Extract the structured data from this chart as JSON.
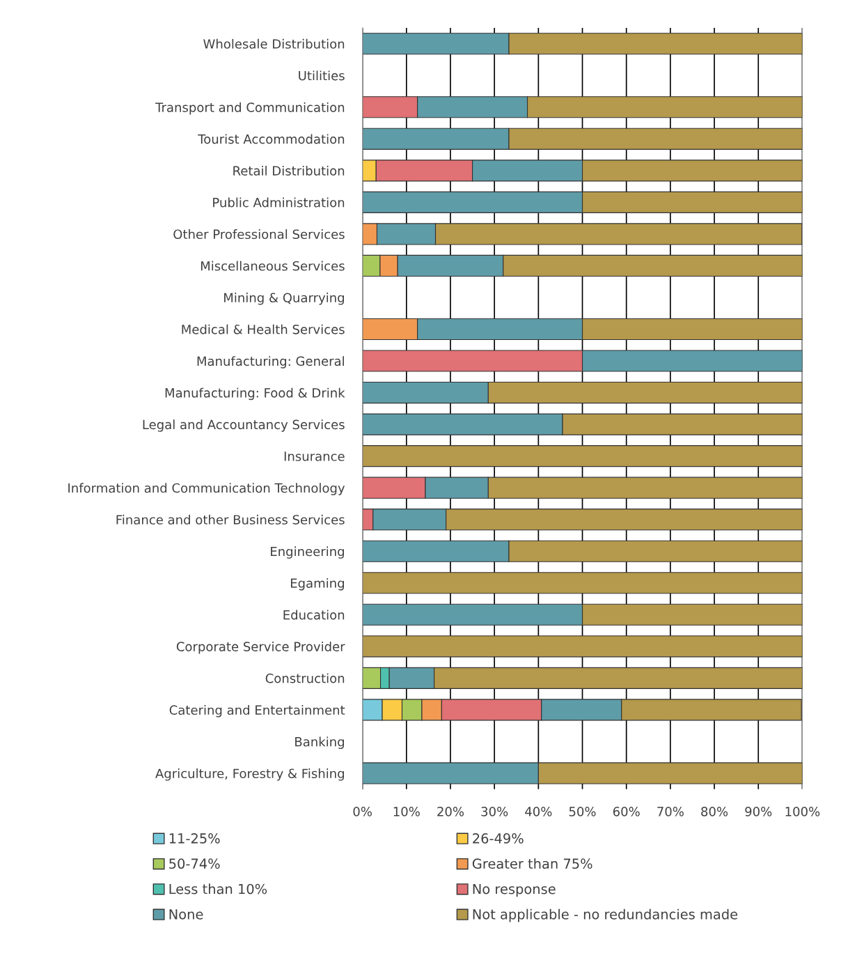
{
  "chart_data": {
    "type": "bar",
    "orientation": "horizontal",
    "stacked": true,
    "categories": [
      "Wholesale Distribution",
      "Utilities",
      "Transport and Communication",
      "Tourist Accommodation",
      "Retail Distribution",
      "Public Administration",
      "Other Professional Services",
      "Miscellaneous Services",
      "Mining & Quarrying",
      "Medical & Health Services",
      "Manufacturing: General",
      "Manufacturing: Food & Drink",
      "Legal and Accountancy Services",
      "Insurance",
      "Information and Communication Technology",
      "Finance and other Business Services",
      "Engineering",
      "Egaming",
      "Education",
      "Corporate Service Provider",
      "Construction",
      "Catering and Entertainment",
      "Banking",
      "Agriculture, Forestry & Fishing"
    ],
    "series": [
      {
        "name": "11-25%",
        "color": "#78c9dc",
        "values": [
          0,
          null,
          0,
          0,
          0,
          0,
          0,
          0,
          null,
          0,
          0,
          0,
          0,
          0,
          0,
          0,
          0,
          0,
          0,
          0,
          0,
          4.5,
          null,
          0
        ]
      },
      {
        "name": "26-49%",
        "color": "#fbcb46",
        "values": [
          0,
          null,
          0,
          0,
          3.1,
          0,
          0,
          0,
          null,
          0,
          0,
          0,
          0,
          0,
          0,
          0,
          0,
          0,
          0,
          0,
          0,
          4.5,
          null,
          0
        ]
      },
      {
        "name": "50-74%",
        "color": "#a8c95c",
        "values": [
          0,
          null,
          0,
          0,
          0,
          0,
          0,
          4,
          null,
          0,
          0,
          0,
          0,
          0,
          0,
          0,
          0,
          0,
          0,
          0,
          4.1,
          4.5,
          null,
          0
        ]
      },
      {
        "name": "Greater than 75%",
        "color": "#f29a52",
        "values": [
          0,
          null,
          0,
          0,
          0,
          0,
          3.3,
          4,
          null,
          12.5,
          0,
          0,
          0,
          0,
          0,
          0,
          0,
          0,
          0,
          0,
          0,
          4.5,
          null,
          0
        ]
      },
      {
        "name": "Less than 10%",
        "color": "#4fc0ae",
        "values": [
          0,
          null,
          0,
          0,
          0,
          0,
          0,
          0,
          null,
          0,
          0,
          0,
          0,
          0,
          0,
          0,
          0,
          0,
          0,
          0,
          2,
          0,
          null,
          0
        ]
      },
      {
        "name": "No response",
        "color": "#e07174",
        "values": [
          0,
          null,
          12.5,
          0,
          21.9,
          0,
          0,
          0,
          null,
          0,
          50,
          0,
          0,
          0,
          14.3,
          2.4,
          0,
          0,
          0,
          0,
          0,
          22.7,
          null,
          0
        ]
      },
      {
        "name": "None",
        "color": "#5e9ca8",
        "values": [
          33.3,
          null,
          25,
          33.3,
          25,
          50,
          13.3,
          24,
          null,
          37.5,
          50,
          28.6,
          45.5,
          0,
          14.3,
          16.6,
          33.3,
          0,
          50,
          0,
          10.2,
          18.2,
          null,
          40
        ]
      },
      {
        "name": "Not applicable - no redundancies made",
        "color": "#b5994c",
        "values": [
          66.7,
          null,
          62.5,
          66.7,
          50,
          50,
          83.3,
          68,
          null,
          50,
          0,
          71.4,
          54.5,
          100,
          71.4,
          81,
          66.7,
          100,
          50,
          100,
          83.7,
          40.9,
          null,
          60
        ]
      }
    ],
    "xlim": [
      0,
      100
    ],
    "xticks": [
      {
        "value": 0,
        "label": "0%"
      },
      {
        "value": 10,
        "label": "10%"
      },
      {
        "value": 20,
        "label": "20%"
      },
      {
        "value": 30,
        "label": "30%"
      },
      {
        "value": 40,
        "label": "40%"
      },
      {
        "value": 50,
        "label": "50%"
      },
      {
        "value": 60,
        "label": "60%"
      },
      {
        "value": 70,
        "label": "70%"
      },
      {
        "value": 80,
        "label": "80%"
      },
      {
        "value": 90,
        "label": "90%"
      },
      {
        "value": 100,
        "label": "100%"
      }
    ],
    "grid": "x",
    "legend": "bottom"
  }
}
